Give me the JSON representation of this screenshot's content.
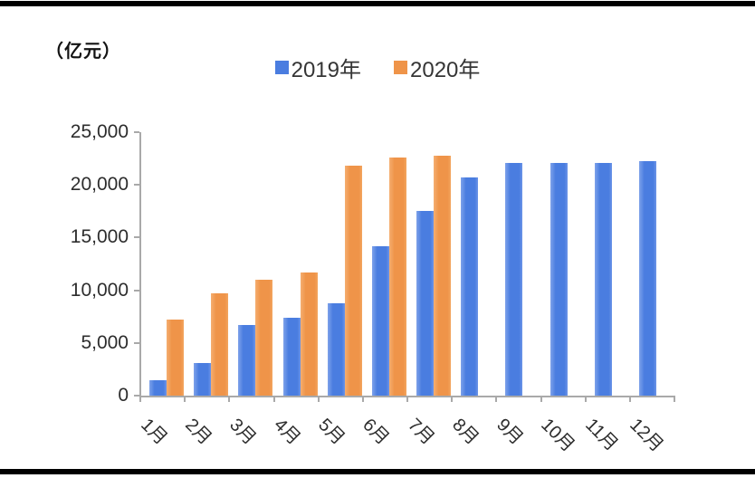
{
  "unit_label": "（亿元）",
  "chart_data": {
    "type": "bar",
    "title": "",
    "unit_label": "（亿元）",
    "categories": [
      "1月",
      "2月",
      "3月",
      "4月",
      "5月",
      "6月",
      "7月",
      "8月",
      "9月",
      "10月",
      "11月",
      "12月"
    ],
    "series": [
      {
        "name": "2019年",
        "color": "#4a7de0",
        "values": [
          1450,
          3100,
          6700,
          7400,
          8750,
          14200,
          17500,
          20700,
          22050,
          22100,
          22100,
          22250
        ]
      },
      {
        "name": "2020年",
        "color": "#ef9449",
        "values": [
          7250,
          9700,
          11000,
          11700,
          21800,
          22600,
          22750,
          null,
          null,
          null,
          null,
          null
        ]
      }
    ],
    "ylim": [
      0,
      25000
    ],
    "ytick_interval": 5000,
    "ytick_labels": [
      "0",
      "5,000",
      "10,000",
      "15,000",
      "20,000",
      "25,000"
    ],
    "xlabel_rotation_deg": 45,
    "legend_position": "top-center",
    "grid": false,
    "axis_color": "#a9a9a9",
    "text_color": "#2d2d2d"
  }
}
